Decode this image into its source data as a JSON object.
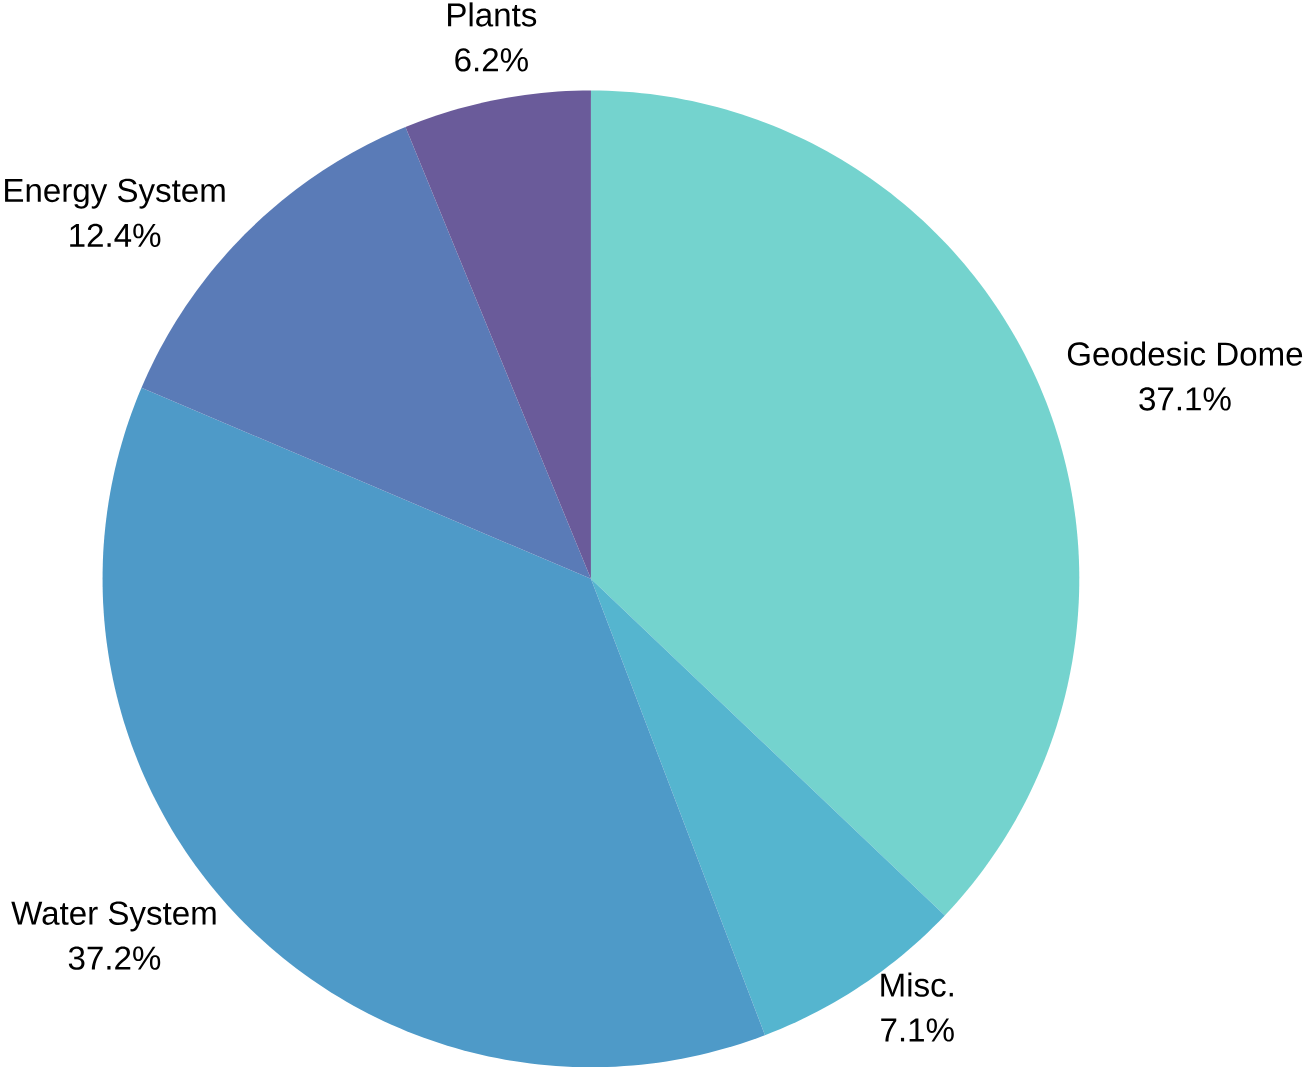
{
  "chart_data": {
    "type": "pie",
    "categories": [
      "Geodesic Dome",
      "Misc.",
      "Water System",
      "Energy System",
      "Plants"
    ],
    "values": [
      37.1,
      7.1,
      37.2,
      12.4,
      6.2
    ],
    "value_labels": [
      "37.1%",
      "7.1%",
      "37.2%",
      "12.4%",
      "6.2%"
    ],
    "colors": [
      "#74d3ce",
      "#55b5cf",
      "#4e9ac8",
      "#5a7bb7",
      "#6a5b9a"
    ]
  }
}
